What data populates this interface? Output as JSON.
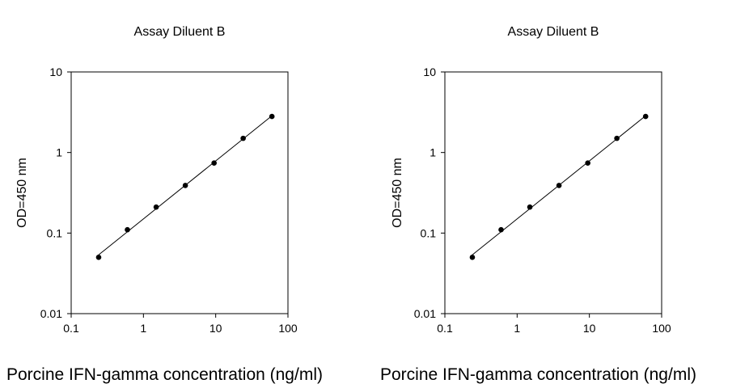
{
  "chart_data": [
    {
      "type": "scatter",
      "title": "Assay Diluent B",
      "xlabel": "Porcine IFN-gamma concentration (ng/ml)",
      "ylabel": "OD=450 nm",
      "xscale": "log",
      "yscale": "log",
      "xlim": [
        0.1,
        100
      ],
      "ylim": [
        0.01,
        10
      ],
      "xticks": [
        "0.1",
        "1",
        "10",
        "100"
      ],
      "yticks": [
        "0.01",
        "0.1",
        "1",
        "10"
      ],
      "grid": false,
      "legend": "none",
      "fit_line": true,
      "series": [
        {
          "x": [
            0.24,
            0.6,
            1.5,
            3.8,
            9.5,
            24,
            60
          ],
          "y": [
            0.05,
            0.11,
            0.21,
            0.39,
            0.74,
            1.5,
            2.8
          ]
        }
      ]
    },
    {
      "type": "scatter",
      "title": "Assay Diluent B",
      "xlabel": "Porcine IFN-gamma concentration (ng/ml)",
      "ylabel": "OD=450 nm",
      "xscale": "log",
      "yscale": "log",
      "xlim": [
        0.1,
        100
      ],
      "ylim": [
        0.01,
        10
      ],
      "xticks": [
        "0.1",
        "1",
        "10",
        "100"
      ],
      "yticks": [
        "0.01",
        "0.1",
        "1",
        "10"
      ],
      "grid": false,
      "legend": "none",
      "fit_line": true,
      "series": [
        {
          "x": [
            0.24,
            0.6,
            1.5,
            3.8,
            9.5,
            24,
            60
          ],
          "y": [
            0.05,
            0.11,
            0.21,
            0.39,
            0.74,
            1.5,
            2.8
          ]
        }
      ]
    }
  ]
}
